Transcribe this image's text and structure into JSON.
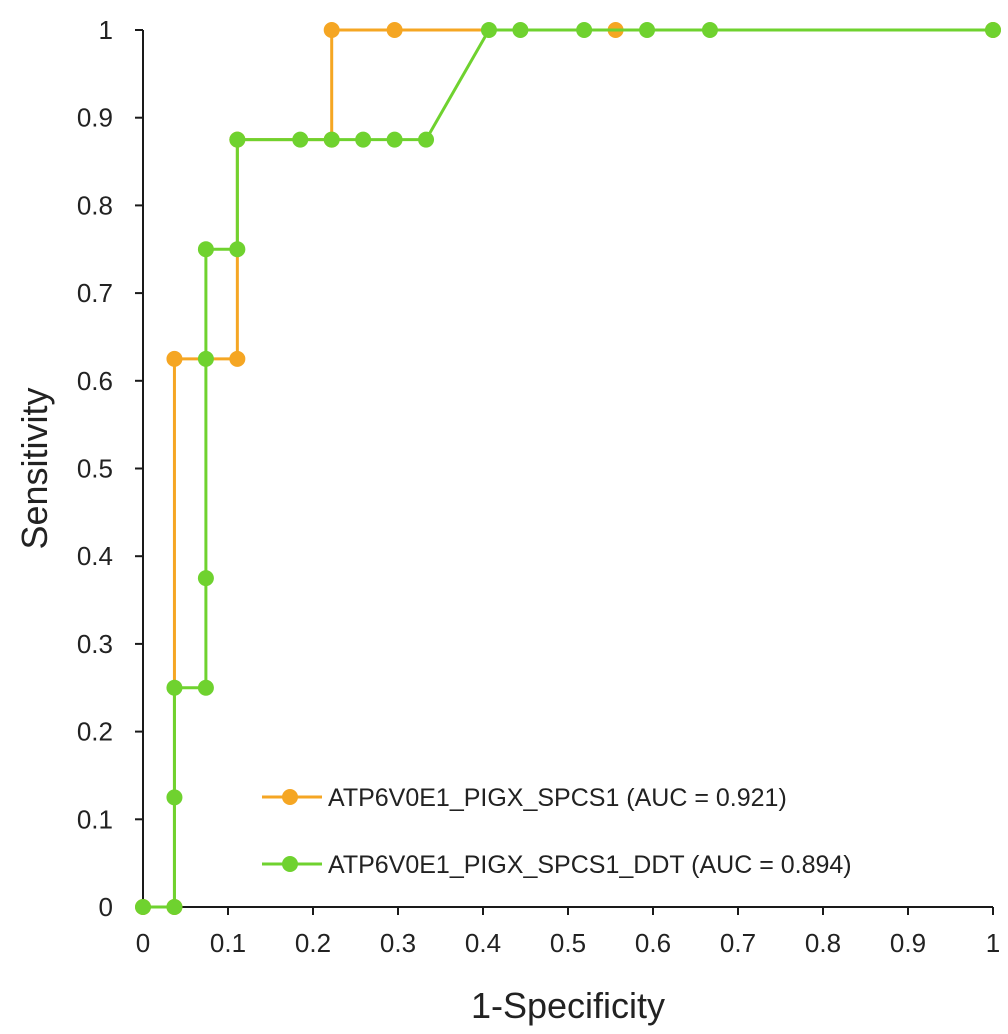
{
  "chart_data": {
    "type": "line",
    "title": "",
    "xlabel": "1-Specificity",
    "ylabel": "Sensitivity",
    "xlim": [
      0,
      1
    ],
    "ylim": [
      0,
      1
    ],
    "x_ticks": [
      "0",
      "0.1",
      "0.2",
      "0.3",
      "0.4",
      "0.5",
      "0.6",
      "0.7",
      "0.8",
      "0.9",
      "1"
    ],
    "y_ticks": [
      "0",
      "0.1",
      "0.2",
      "0.3",
      "0.4",
      "0.5",
      "0.6",
      "0.7",
      "0.8",
      "0.9",
      "1"
    ],
    "grid": false,
    "legend_position": "bottom-right",
    "series": [
      {
        "name": "ATP6V0E1_PIGX_SPCS1 (AUC = 0.921)",
        "color": "#f5a623",
        "marker": "circle",
        "points": [
          [
            0,
            0
          ],
          [
            0.037,
            0
          ],
          [
            0.037,
            0.625
          ],
          [
            0.111,
            0.625
          ],
          [
            0.111,
            0.875
          ],
          [
            0.222,
            0.875
          ],
          [
            0.222,
            1.0
          ],
          [
            0.296,
            1.0
          ],
          [
            0.556,
            1.0
          ],
          [
            1.0,
            1.0
          ]
        ]
      },
      {
        "name": "ATP6V0E1_PIGX_SPCS1_DDT (AUC = 0.894)",
        "color": "#6fd22f",
        "marker": "circle",
        "points": [
          [
            0,
            0
          ],
          [
            0.037,
            0
          ],
          [
            0.037,
            0.125
          ],
          [
            0.037,
            0.25
          ],
          [
            0.074,
            0.25
          ],
          [
            0.074,
            0.375
          ],
          [
            0.074,
            0.625
          ],
          [
            0.074,
            0.75
          ],
          [
            0.111,
            0.75
          ],
          [
            0.111,
            0.875
          ],
          [
            0.185,
            0.875
          ],
          [
            0.222,
            0.875
          ],
          [
            0.259,
            0.875
          ],
          [
            0.296,
            0.875
          ],
          [
            0.333,
            0.875
          ],
          [
            0.407,
            1.0
          ],
          [
            0.444,
            1.0
          ],
          [
            0.519,
            1.0
          ],
          [
            0.593,
            1.0
          ],
          [
            0.667,
            1.0
          ],
          [
            1.0,
            1.0
          ]
        ]
      }
    ]
  }
}
